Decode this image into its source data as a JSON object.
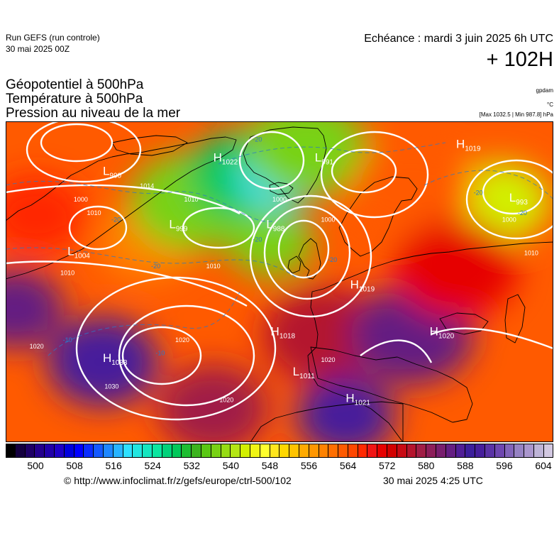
{
  "header": {
    "run_title": "Run GEFS (run controle)",
    "run_date": "30 mai 2025 00Z",
    "echeance": "Echéance : mardi 3 juin 2025 6h UTC",
    "leadtime": "+ 102H"
  },
  "params": [
    "Géopotentiel à 500hPa",
    "Température à 500hPa",
    "Pression au niveau de la mer"
  ],
  "units": {
    "geopotential": "gpdam",
    "temperature": "°C",
    "extremes": "[Max 1032.5 | Min 987.8] hPa"
  },
  "pressure_centers": [
    {
      "type": "L",
      "value": "990",
      "lon": -40,
      "lat": 68
    },
    {
      "type": "H",
      "value": "1022",
      "lon": -15,
      "lat": 70
    },
    {
      "type": "L",
      "value": "991",
      "lon": 8,
      "lat": 70
    },
    {
      "type": "H",
      "value": "1019",
      "lon": 40,
      "lat": 72
    },
    {
      "type": "L",
      "value": "993",
      "lon": 52,
      "lat": 64
    },
    {
      "type": "L",
      "value": "1004",
      "lon": -48,
      "lat": 56
    },
    {
      "type": "L",
      "value": "999",
      "lon": -25,
      "lat": 60
    },
    {
      "type": "L",
      "value": "988",
      "lon": -3,
      "lat": 60
    },
    {
      "type": "H",
      "value": "1019",
      "lon": 16,
      "lat": 51
    },
    {
      "type": "H",
      "value": "1033",
      "lon": -40,
      "lat": 40
    },
    {
      "type": "H",
      "value": "1018",
      "lon": -2,
      "lat": 44
    },
    {
      "type": "L",
      "value": "1011",
      "lon": 3,
      "lat": 38
    },
    {
      "type": "H",
      "value": "1020",
      "lon": 34,
      "lat": 44
    },
    {
      "type": "H",
      "value": "1021",
      "lon": 15,
      "lat": 34
    }
  ],
  "isobar_labels": [
    {
      "value": "1000",
      "lon": -45,
      "lat": 64
    },
    {
      "value": "1010",
      "lon": -42,
      "lat": 62
    },
    {
      "value": "1014",
      "lon": -30,
      "lat": 66
    },
    {
      "value": "1010",
      "lon": -20,
      "lat": 64
    },
    {
      "value": "1010",
      "lon": -48,
      "lat": 53
    },
    {
      "value": "1010",
      "lon": -15,
      "lat": 54
    },
    {
      "value": "1000",
      "lon": 0,
      "lat": 64
    },
    {
      "value": "1000",
      "lon": 11,
      "lat": 61
    },
    {
      "value": "1000",
      "lon": 52,
      "lat": 61
    },
    {
      "value": "1010",
      "lon": 57,
      "lat": 56
    },
    {
      "value": "1020",
      "lon": -55,
      "lat": 42
    },
    {
      "value": "1020",
      "lon": -22,
      "lat": 43
    },
    {
      "value": "1020",
      "lon": -12,
      "lat": 34
    },
    {
      "value": "1030",
      "lon": -38,
      "lat": 36
    },
    {
      "value": "1020",
      "lon": 11,
      "lat": 40
    }
  ],
  "isotherm_labels": [
    {
      "value": "-20",
      "lon": -37,
      "lat": 61
    },
    {
      "value": "-20",
      "lon": -28,
      "lat": 54
    },
    {
      "value": "-20",
      "lon": -5,
      "lat": 58
    },
    {
      "value": "-20",
      "lon": 12,
      "lat": 55
    },
    {
      "value": "-20",
      "lon": -5,
      "lat": 73
    },
    {
      "value": "-20",
      "lon": 45,
      "lat": 65
    },
    {
      "value": "-20",
      "lon": 55,
      "lat": 62
    },
    {
      "value": "-10",
      "lon": -48,
      "lat": 43
    },
    {
      "value": "-10",
      "lon": -27,
      "lat": 41
    }
  ],
  "field_blobs": [
    {
      "lon": -30,
      "lat": 58,
      "value": 560,
      "spread": 8
    },
    {
      "lon": -20,
      "lat": 64,
      "value": 540,
      "spread": 10
    },
    {
      "lon": -8,
      "lat": 68,
      "value": 532,
      "spread": 9
    },
    {
      "lon": 0,
      "lat": 68,
      "value": 522,
      "spread": 7
    },
    {
      "lon": -2,
      "lat": 58,
      "value": 540,
      "spread": 7
    },
    {
      "lon": 6,
      "lat": 72,
      "value": 540,
      "spread": 10
    },
    {
      "lon": 50,
      "lat": 64,
      "value": 545,
      "spread": 8
    },
    {
      "lon": 30,
      "lat": 66,
      "value": 565,
      "spread": 10
    },
    {
      "lon": -55,
      "lat": 62,
      "value": 568,
      "spread": 8
    },
    {
      "lon": -40,
      "lat": 40,
      "value": 590,
      "spread": 9
    },
    {
      "lon": -15,
      "lat": 33,
      "value": 580,
      "spread": 9
    },
    {
      "lon": 10,
      "lat": 44,
      "value": 578,
      "spread": 10
    },
    {
      "lon": 30,
      "lat": 44,
      "value": 585,
      "spread": 10
    },
    {
      "lon": 15,
      "lat": 32,
      "value": 590,
      "spread": 8
    },
    {
      "lon": 40,
      "lat": 54,
      "value": 572,
      "spread": 10
    },
    {
      "lon": -60,
      "lat": 48,
      "value": 585,
      "spread": 8
    }
  ],
  "colorbar": {
    "ticks": [
      "500",
      "508",
      "516",
      "524",
      "532",
      "540",
      "548",
      "556",
      "564",
      "572",
      "580",
      "588",
      "596",
      "604"
    ],
    "colors": [
      "#000000",
      "#14003f",
      "#1e0066",
      "#23008c",
      "#2000a8",
      "#1d00c6",
      "#0000dd",
      "#0000ff",
      "#0a2cff",
      "#1459ff",
      "#1e87ff",
      "#28b4ff",
      "#2ee0ff",
      "#22e6e0",
      "#14e6c0",
      "#0ae6a0",
      "#00d27a",
      "#00c85a",
      "#1ebe32",
      "#3cb41e",
      "#5ac814",
      "#78d214",
      "#96dc14",
      "#b4e614",
      "#d2f000",
      "#f0f514",
      "#ffff2e",
      "#ffe61e",
      "#ffd700",
      "#ffc300",
      "#ffaa00",
      "#ff9600",
      "#ff8200",
      "#ff6e00",
      "#ff5a00",
      "#ff4600",
      "#ff2800",
      "#f01414",
      "#e60000",
      "#d20000",
      "#c80a14",
      "#b4142d",
      "#a01e46",
      "#8c1e5a",
      "#781e6e",
      "#641e82",
      "#501e96",
      "#3c1e9b",
      "#461e9b",
      "#5a32a5",
      "#6e46af",
      "#8264b9",
      "#9682c3",
      "#aa96cd",
      "#beb4d7",
      "#d2c8e1"
    ]
  },
  "footer": {
    "copyright": "© http://www.infoclimat.fr/z/gefs/europe/ctrl-500/102",
    "generated": "30 mai 2025  4:25 UTC"
  }
}
